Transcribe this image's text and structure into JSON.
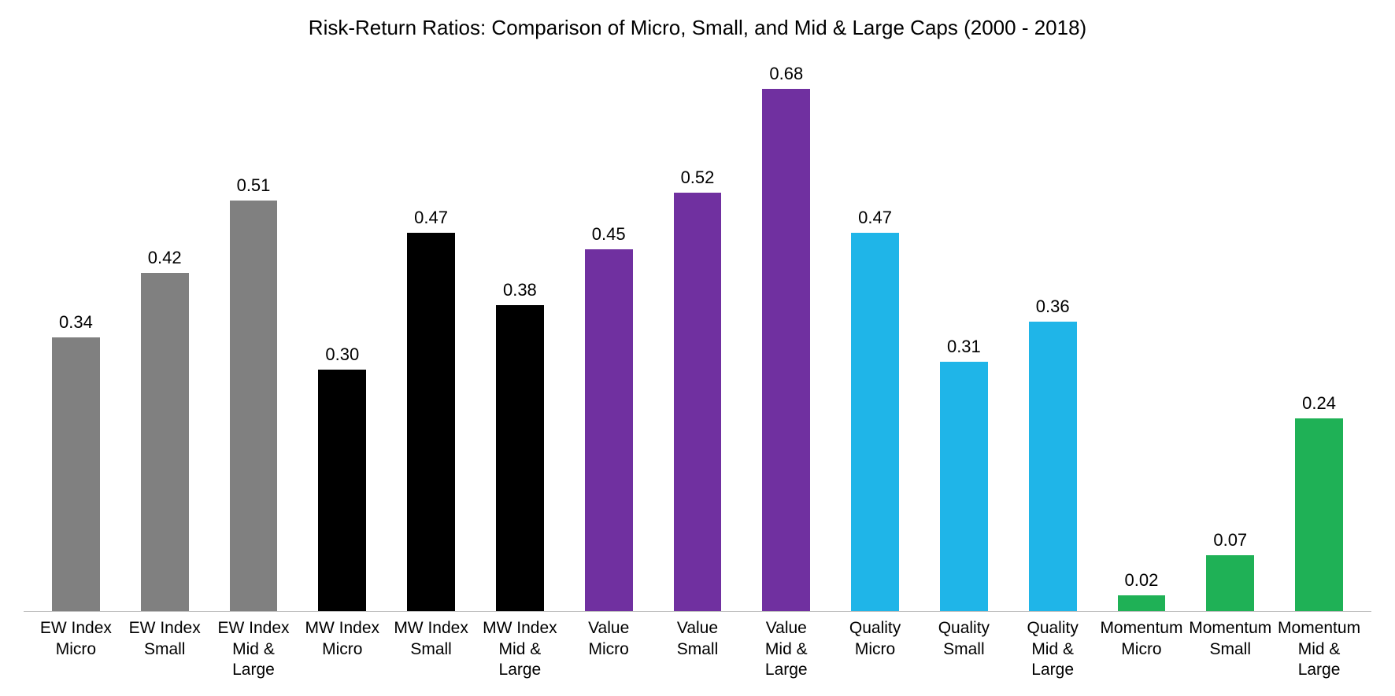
{
  "chart": {
    "type": "bar",
    "title": "Risk-Return Ratios: Comparison of Micro, Small, and Mid & Large Caps (2000 - 2018)",
    "title_fontsize": 26,
    "title_color": "#000000",
    "background_color": "#ffffff",
    "axis_line_color": "#bfbfbf",
    "ylim": [
      0,
      0.68
    ],
    "bar_width_ratio": 0.54,
    "value_label_fontsize": 22,
    "category_label_fontsize": 21,
    "label_color": "#000000",
    "groups": [
      {
        "name": "EW Index",
        "color": "#808080"
      },
      {
        "name": "MW Index",
        "color": "#000000"
      },
      {
        "name": "Value",
        "color": "#7030a0"
      },
      {
        "name": "Quality",
        "color": "#1fb5e8"
      },
      {
        "name": "Momentum",
        "color": "#1fb156"
      }
    ],
    "bars": [
      {
        "label": "EW Index\nMicro",
        "value": 0.34,
        "value_text": "0.34",
        "color": "#808080"
      },
      {
        "label": "EW Index\nSmall",
        "value": 0.42,
        "value_text": "0.42",
        "color": "#808080"
      },
      {
        "label": "EW Index\nMid &\nLarge",
        "value": 0.51,
        "value_text": "0.51",
        "color": "#808080"
      },
      {
        "label": "MW Index\nMicro",
        "value": 0.3,
        "value_text": "0.30",
        "color": "#000000"
      },
      {
        "label": "MW Index\nSmall",
        "value": 0.47,
        "value_text": "0.47",
        "color": "#000000"
      },
      {
        "label": "MW Index\nMid &\nLarge",
        "value": 0.38,
        "value_text": "0.38",
        "color": "#000000"
      },
      {
        "label": "Value\nMicro",
        "value": 0.45,
        "value_text": "0.45",
        "color": "#7030a0"
      },
      {
        "label": "Value\nSmall",
        "value": 0.52,
        "value_text": "0.52",
        "color": "#7030a0"
      },
      {
        "label": "Value\nMid &\nLarge",
        "value": 0.68,
        "value_text": "0.68",
        "color": "#7030a0"
      },
      {
        "label": "Quality\nMicro",
        "value": 0.47,
        "value_text": "0.47",
        "color": "#1fb5e8"
      },
      {
        "label": "Quality\nSmall",
        "value": 0.31,
        "value_text": "0.31",
        "color": "#1fb5e8"
      },
      {
        "label": "Quality\nMid &\nLarge",
        "value": 0.36,
        "value_text": "0.36",
        "color": "#1fb5e8"
      },
      {
        "label": "Momentum\nMicro",
        "value": 0.02,
        "value_text": "0.02",
        "color": "#1fb156"
      },
      {
        "label": "Momentum\nSmall",
        "value": 0.07,
        "value_text": "0.07",
        "color": "#1fb156"
      },
      {
        "label": "Momentum\nMid &\nLarge",
        "value": 0.24,
        "value_text": "0.24",
        "color": "#1fb156"
      }
    ]
  }
}
